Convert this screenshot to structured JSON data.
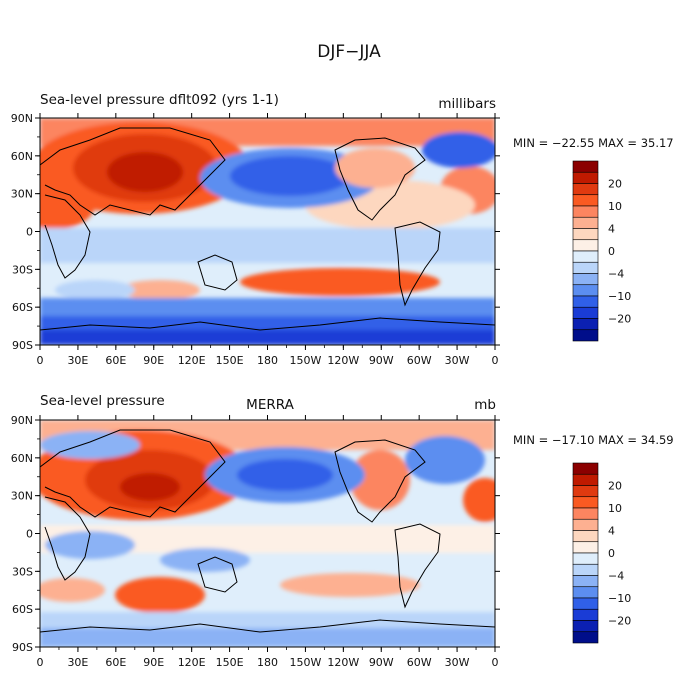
{
  "figure": {
    "title": "DJF−JJA"
  },
  "panels": [
    {
      "id": "model",
      "title_left": "Sea-level pressure  dflt092  (yrs 1-1)",
      "title_center": "",
      "units": "millibars",
      "stats": "MIN = −22.55  MAX =  35.17",
      "map": {
        "type": "filled-contour map",
        "projection": "cylindrical equidistant",
        "lon_range": [
          0,
          360
        ],
        "lat_range": [
          -90,
          90
        ],
        "coastlines": true,
        "features": [
          "strong positive anomaly over Siberia/Asia",
          "negative anomaly over North Pacific",
          "negative anomaly over North Atlantic",
          "positive band in South Pacific near 40S",
          "negative band over Southern Ocean"
        ]
      }
    },
    {
      "id": "obs",
      "title_left": "Sea-level pressure",
      "title_center": "MERRA",
      "units": "mb",
      "stats": "MIN = −17.10  MAX =  34.59",
      "map": {
        "type": "filled-contour map",
        "projection": "cylindrical equidistant",
        "lon_range": [
          0,
          360
        ],
        "lat_range": [
          -90,
          90
        ],
        "coastlines": true,
        "features": [
          "strong positive anomaly over Siberia/Asia",
          "negative anomaly over North Pacific",
          "negative anomaly over North Atlantic",
          "weaker positive anomalies in Southern Hemisphere oceans"
        ]
      }
    }
  ],
  "axes": {
    "x_ticks": [
      "0",
      "30E",
      "60E",
      "90E",
      "120E",
      "150E",
      "180",
      "150W",
      "120W",
      "90W",
      "60W",
      "30W",
      "0"
    ],
    "y_ticks": [
      "90N",
      "60N",
      "30N",
      "0",
      "30S",
      "60S",
      "90S"
    ]
  },
  "colorbar": {
    "labels": [
      "20",
      "10",
      "4",
      "0",
      "−4",
      "−10",
      "−20"
    ],
    "colors_top_to_bottom": [
      "#8b0000",
      "#c01a00",
      "#e03a10",
      "#fa5a22",
      "#fc8560",
      "#fdb091",
      "#fdd7bf",
      "#fdf0e6",
      "#dfeefb",
      "#bad5f9",
      "#8bb2f5",
      "#5c8ef0",
      "#3060e8",
      "#1a3cd6",
      "#0b20b2",
      "#000e8a"
    ]
  }
}
